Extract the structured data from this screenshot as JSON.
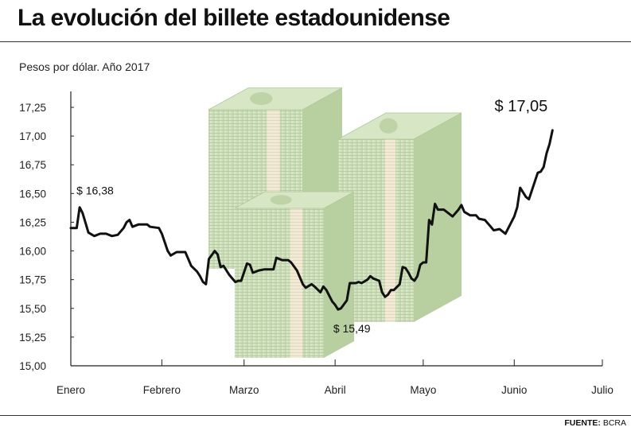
{
  "header": {
    "title": "La evolución del billete estadounidense",
    "subtitle": "Pesos por dólar. Año 2017"
  },
  "footer": {
    "source_label": "FUENTE:",
    "source_value": "BCRA"
  },
  "colors": {
    "line": "#111111",
    "axis": "#222222",
    "bill_green": "#c9dcb4",
    "bill_band": "#efe6cf"
  },
  "chart_data": {
    "type": "line",
    "title": "La evolución del billete estadounidense",
    "subtitle": "Pesos por dólar. Año 2017",
    "xlabel": "",
    "ylabel": "",
    "ylim": [
      15.0,
      17.25
    ],
    "grid": false,
    "y_ticks": [
      "15,00",
      "15,25",
      "15,50",
      "15,75",
      "16,00",
      "16,25",
      "16,50",
      "16,75",
      "17,00",
      "17,25"
    ],
    "y_tick_values": [
      15.0,
      15.25,
      15.5,
      15.75,
      16.0,
      16.25,
      16.5,
      16.75,
      17.0,
      17.25
    ],
    "x_ticks": [
      "Enero",
      "Febrero",
      "Marzo",
      "Abril",
      "Mayo",
      "Junio",
      "Julio"
    ],
    "x_tick_days": [
      1,
      32,
      60,
      91,
      121,
      152,
      182
    ],
    "series": [
      {
        "values": [
          [
            1,
            16.2
          ],
          [
            3,
            16.2
          ],
          [
            4,
            16.38
          ],
          [
            5,
            16.33
          ],
          [
            7,
            16.16
          ],
          [
            9,
            16.13
          ],
          [
            11,
            16.15
          ],
          [
            13,
            16.15
          ],
          [
            15,
            16.13
          ],
          [
            17,
            16.14
          ],
          [
            19,
            16.2
          ],
          [
            20,
            16.25
          ],
          [
            21,
            16.27
          ],
          [
            22,
            16.21
          ],
          [
            24,
            16.23
          ],
          [
            27,
            16.23
          ],
          [
            28,
            16.21
          ],
          [
            31,
            16.2
          ],
          [
            32,
            16.15
          ],
          [
            34,
            16.0
          ],
          [
            35,
            15.96
          ],
          [
            37,
            15.99
          ],
          [
            40,
            15.99
          ],
          [
            42,
            15.87
          ],
          [
            44,
            15.82
          ],
          [
            45,
            15.78
          ],
          [
            46,
            15.73
          ],
          [
            47,
            15.71
          ],
          [
            48,
            15.93
          ],
          [
            50,
            16.0
          ],
          [
            51,
            15.97
          ],
          [
            52,
            15.86
          ],
          [
            53,
            15.87
          ],
          [
            55,
            15.79
          ],
          [
            57,
            15.73
          ],
          [
            58,
            15.74
          ],
          [
            59,
            15.74
          ],
          [
            61,
            15.89
          ],
          [
            62,
            15.88
          ],
          [
            63,
            15.81
          ],
          [
            65,
            15.83
          ],
          [
            67,
            15.84
          ],
          [
            70,
            15.84
          ],
          [
            71,
            15.94
          ],
          [
            73,
            15.92
          ],
          [
            75,
            15.92
          ],
          [
            76,
            15.9
          ],
          [
            78,
            15.83
          ],
          [
            80,
            15.71
          ],
          [
            81,
            15.68
          ],
          [
            83,
            15.71
          ],
          [
            84,
            15.69
          ],
          [
            86,
            15.64
          ],
          [
            87,
            15.69
          ],
          [
            88,
            15.66
          ],
          [
            90,
            15.56
          ],
          [
            91,
            15.53
          ],
          [
            92,
            15.49
          ],
          [
            93,
            15.5
          ],
          [
            95,
            15.57
          ],
          [
            96,
            15.72
          ],
          [
            98,
            15.72
          ],
          [
            99,
            15.73
          ],
          [
            100,
            15.72
          ],
          [
            102,
            15.75
          ],
          [
            103,
            15.78
          ],
          [
            104,
            15.76
          ],
          [
            106,
            15.74
          ],
          [
            107,
            15.64
          ],
          [
            108,
            15.6
          ],
          [
            109,
            15.62
          ],
          [
            110,
            15.66
          ],
          [
            111,
            15.66
          ],
          [
            113,
            15.71
          ],
          [
            114,
            15.86
          ],
          [
            115,
            15.85
          ],
          [
            116,
            15.81
          ],
          [
            117,
            15.76
          ],
          [
            118,
            15.74
          ],
          [
            119,
            15.78
          ],
          [
            120,
            15.88
          ],
          [
            121,
            15.9
          ],
          [
            122,
            15.9
          ],
          [
            123,
            16.27
          ],
          [
            124,
            16.23
          ],
          [
            125,
            16.41
          ],
          [
            126,
            16.36
          ],
          [
            128,
            16.36
          ],
          [
            129,
            16.34
          ],
          [
            131,
            16.3
          ],
          [
            133,
            16.36
          ],
          [
            134,
            16.4
          ],
          [
            135,
            16.34
          ],
          [
            137,
            16.31
          ],
          [
            139,
            16.31
          ],
          [
            140,
            16.28
          ],
          [
            142,
            16.27
          ],
          [
            144,
            16.21
          ],
          [
            145,
            16.18
          ],
          [
            147,
            16.19
          ],
          [
            149,
            16.15
          ],
          [
            150,
            16.2
          ],
          [
            152,
            16.3
          ],
          [
            153,
            16.38
          ],
          [
            154,
            16.55
          ],
          [
            156,
            16.47
          ],
          [
            157,
            16.45
          ],
          [
            160,
            16.68
          ],
          [
            161,
            16.69
          ],
          [
            162,
            16.73
          ],
          [
            163,
            16.85
          ],
          [
            164,
            16.93
          ],
          [
            165,
            17.05
          ]
        ]
      }
    ],
    "annotations": [
      {
        "text": "$ 16,38",
        "x": 4,
        "y": 16.38,
        "position": "above"
      },
      {
        "text": "$ 15,49",
        "x": 92,
        "y": 15.49,
        "position": "below"
      },
      {
        "text": "$ 17,05",
        "x": 165,
        "y": 17.05,
        "position": "above"
      }
    ]
  }
}
